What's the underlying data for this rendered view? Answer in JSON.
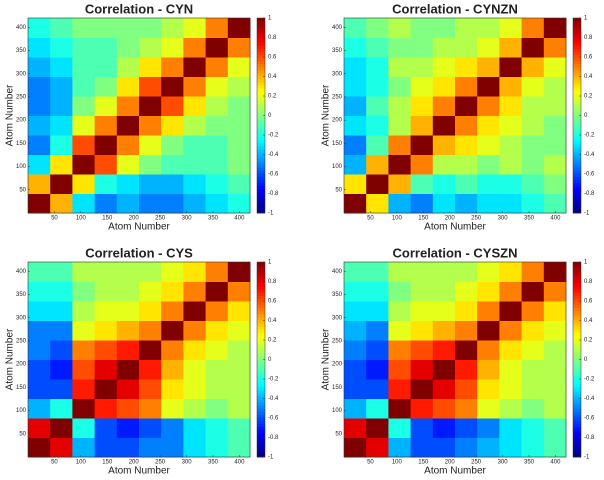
{
  "chart_data": [
    {
      "type": "heatmap",
      "title": "Correlation - CYN",
      "xlabel": "Atom Number",
      "ylabel": "Atom Number",
      "colormap": "jet",
      "xlim": [
        0,
        420
      ],
      "ylim": [
        0,
        420
      ],
      "xticks": [
        50,
        100,
        150,
        200,
        250,
        300,
        350,
        400
      ],
      "yticks": [
        50,
        100,
        150,
        200,
        250,
        300,
        350,
        400
      ],
      "clim": [
        -1,
        1
      ],
      "cticks": [
        1,
        0.8,
        0.6,
        0.4,
        0.2,
        0,
        -0.2,
        -0.4,
        -0.6,
        -0.8,
        -1
      ],
      "z": [
        [
          1,
          0.4,
          -0.3,
          -0.5,
          -0.4,
          -0.5,
          -0.5,
          -0.4,
          -0.3,
          -0.2
        ],
        [
          0.4,
          1,
          0.3,
          -0.2,
          -0.3,
          -0.4,
          -0.4,
          -0.3,
          -0.2,
          -0.1
        ],
        [
          -0.3,
          0.3,
          1,
          0.6,
          0.2,
          0,
          -0.1,
          -0.1,
          -0.1,
          0
        ],
        [
          -0.5,
          -0.2,
          0.6,
          1,
          0.5,
          0.2,
          0,
          -0.1,
          -0.1,
          0
        ],
        [
          -0.4,
          -0.3,
          0.2,
          0.5,
          1,
          0.5,
          0.3,
          0.1,
          0,
          0
        ],
        [
          -0.5,
          -0.4,
          0,
          0.2,
          0.5,
          1,
          0.6,
          0.3,
          0.1,
          0
        ],
        [
          -0.5,
          -0.4,
          -0.1,
          0,
          0.3,
          0.6,
          1,
          0.5,
          0.2,
          0.1
        ],
        [
          -0.4,
          -0.3,
          -0.1,
          -0.1,
          0.1,
          0.3,
          0.5,
          1,
          0.5,
          0.2
        ],
        [
          -0.3,
          -0.2,
          -0.1,
          -0.1,
          0,
          0.1,
          0.2,
          0.5,
          1,
          0.5
        ],
        [
          -0.2,
          -0.1,
          0,
          0,
          0,
          0,
          0.1,
          0.2,
          0.5,
          1
        ]
      ]
    },
    {
      "type": "heatmap",
      "title": "Correlation - CYNZN",
      "xlabel": "Atom Number",
      "ylabel": "Atom Number",
      "colormap": "jet",
      "xlim": [
        0,
        420
      ],
      "ylim": [
        0,
        420
      ],
      "xticks": [
        50,
        100,
        150,
        200,
        250,
        300,
        350,
        400
      ],
      "yticks": [
        50,
        100,
        150,
        200,
        250,
        300,
        350,
        400
      ],
      "clim": [
        -1,
        1
      ],
      "cticks": [
        1,
        0.8,
        0.6,
        0.4,
        0.2,
        0,
        -0.2,
        -0.4,
        -0.6,
        -0.8,
        -1
      ],
      "z": [
        [
          1,
          0.3,
          -0.4,
          -0.5,
          -0.3,
          -0.4,
          -0.3,
          -0.3,
          -0.2,
          -0.1
        ],
        [
          0.3,
          1,
          0.4,
          -0.1,
          -0.2,
          -0.1,
          -0.2,
          -0.2,
          -0.1,
          0
        ],
        [
          -0.4,
          0.4,
          1,
          0.5,
          0.1,
          0.1,
          0,
          0.1,
          0,
          0.1
        ],
        [
          -0.5,
          -0.1,
          0.5,
          1,
          0.4,
          0.3,
          0.2,
          0.1,
          0,
          0
        ],
        [
          -0.3,
          -0.2,
          0.1,
          0.4,
          1,
          0.5,
          0.3,
          0.2,
          0.1,
          0
        ],
        [
          -0.4,
          -0.1,
          0.1,
          0.3,
          0.5,
          1,
          0.5,
          0.3,
          0.1,
          0.1
        ],
        [
          -0.3,
          -0.2,
          0,
          0.2,
          0.3,
          0.5,
          1,
          0.4,
          0.2,
          0.1
        ],
        [
          -0.3,
          -0.2,
          0.1,
          0.1,
          0.2,
          0.3,
          0.4,
          1,
          0.4,
          0.2
        ],
        [
          -0.2,
          -0.1,
          0,
          0,
          0.1,
          0.1,
          0.2,
          0.4,
          1,
          0.5
        ],
        [
          -0.1,
          0,
          0.1,
          0,
          0,
          0.1,
          0.1,
          0.2,
          0.5,
          1
        ]
      ]
    },
    {
      "type": "heatmap",
      "title": "Correlation - CYS",
      "xlabel": "Atom Number",
      "ylabel": "Atom Number",
      "colormap": "jet",
      "xlim": [
        0,
        420
      ],
      "ylim": [
        0,
        420
      ],
      "xticks": [
        50,
        100,
        150,
        200,
        250,
        300,
        350,
        400
      ],
      "yticks": [
        50,
        100,
        150,
        200,
        250,
        300,
        350,
        400
      ],
      "clim": [
        -1,
        1
      ],
      "cticks": [
        1,
        0.8,
        0.6,
        0.4,
        0.2,
        0,
        -0.2,
        -0.4,
        -0.6,
        -0.8,
        -1
      ],
      "z": [
        [
          1,
          0.8,
          -0.4,
          -0.6,
          -0.6,
          -0.5,
          -0.5,
          -0.3,
          -0.2,
          -0.1
        ],
        [
          0.8,
          1,
          -0.2,
          -0.6,
          -0.7,
          -0.6,
          -0.5,
          -0.3,
          -0.2,
          -0.1
        ],
        [
          -0.4,
          -0.2,
          1,
          0.7,
          0.6,
          0.5,
          0.2,
          0.1,
          0,
          0.1
        ],
        [
          -0.6,
          -0.6,
          0.7,
          1,
          0.8,
          0.6,
          0.3,
          0.2,
          0.1,
          0.1
        ],
        [
          -0.6,
          -0.7,
          0.6,
          0.8,
          1,
          0.7,
          0.4,
          0.2,
          0.1,
          0.1
        ],
        [
          -0.5,
          -0.6,
          0.5,
          0.6,
          0.7,
          1,
          0.5,
          0.3,
          0.2,
          0.1
        ],
        [
          -0.5,
          -0.5,
          0.2,
          0.3,
          0.4,
          0.5,
          1,
          0.5,
          0.3,
          0.2
        ],
        [
          -0.3,
          -0.3,
          0.1,
          0.2,
          0.2,
          0.3,
          0.5,
          1,
          0.5,
          0.3
        ],
        [
          -0.2,
          -0.2,
          0,
          0.1,
          0.1,
          0.2,
          0.3,
          0.5,
          1,
          0.5
        ],
        [
          -0.1,
          -0.1,
          0.1,
          0.1,
          0.1,
          0.1,
          0.2,
          0.3,
          0.5,
          1
        ]
      ]
    },
    {
      "type": "heatmap",
      "title": "Correlation - CYSZN",
      "xlabel": "Atom Number",
      "ylabel": "Atom Number",
      "colormap": "jet",
      "xlim": [
        0,
        420
      ],
      "ylim": [
        0,
        420
      ],
      "xticks": [
        50,
        100,
        150,
        200,
        250,
        300,
        350,
        400
      ],
      "yticks": [
        50,
        100,
        150,
        200,
        250,
        300,
        350,
        400
      ],
      "clim": [
        -1,
        1
      ],
      "cticks": [
        1,
        0.8,
        0.6,
        0.4,
        0.2,
        0,
        -0.2,
        -0.4,
        -0.6,
        -0.8,
        -1
      ],
      "z": [
        [
          1,
          0.8,
          -0.4,
          -0.6,
          -0.6,
          -0.5,
          -0.4,
          -0.3,
          -0.2,
          -0.1
        ],
        [
          0.8,
          1,
          -0.2,
          -0.6,
          -0.7,
          -0.6,
          -0.5,
          -0.3,
          -0.2,
          -0.1
        ],
        [
          -0.4,
          -0.2,
          1,
          0.7,
          0.6,
          0.5,
          0.2,
          0.1,
          0,
          0.1
        ],
        [
          -0.6,
          -0.6,
          0.7,
          1,
          0.8,
          0.6,
          0.3,
          0.2,
          0.1,
          0.1
        ],
        [
          -0.6,
          -0.7,
          0.6,
          0.8,
          1,
          0.7,
          0.4,
          0.2,
          0.1,
          0.1
        ],
        [
          -0.5,
          -0.6,
          0.5,
          0.6,
          0.7,
          1,
          0.5,
          0.3,
          0.2,
          0.1
        ],
        [
          -0.4,
          -0.5,
          0.2,
          0.3,
          0.4,
          0.5,
          1,
          0.5,
          0.3,
          0.2
        ],
        [
          -0.3,
          -0.3,
          0.1,
          0.2,
          0.2,
          0.3,
          0.5,
          1,
          0.5,
          0.3
        ],
        [
          -0.2,
          -0.2,
          0,
          0.1,
          0.1,
          0.2,
          0.3,
          0.5,
          1,
          0.5
        ],
        [
          -0.1,
          -0.1,
          0.1,
          0.1,
          0.1,
          0.1,
          0.2,
          0.3,
          0.5,
          1
        ]
      ]
    }
  ]
}
